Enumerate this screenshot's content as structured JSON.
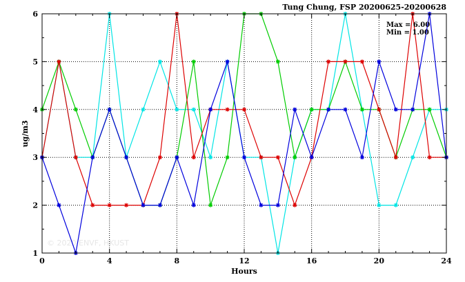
{
  "chart_data": {
    "type": "line",
    "title": "Tung Chung, FSP 20200625-20200628",
    "xlabel": "Hours",
    "ylabel": "ug/m3",
    "xlim": [
      0,
      24
    ],
    "ylim": [
      1,
      6
    ],
    "x_ticks": [
      0,
      4,
      8,
      12,
      16,
      20,
      24
    ],
    "y_ticks": [
      1,
      2,
      3,
      4,
      5,
      6
    ],
    "grid": true,
    "annotations": [
      "Max = 6.00",
      "Min = 1.00"
    ],
    "watermark": "© 2020 ENVF, HKUST",
    "x": [
      0,
      1,
      2,
      3,
      4,
      5,
      6,
      7,
      8,
      9,
      10,
      11,
      12,
      13,
      14,
      15,
      16,
      17,
      18,
      19,
      20,
      21,
      22,
      23,
      24
    ],
    "series": [
      {
        "color": "#00e5e5",
        "values": [
          3,
          5,
          3,
          3,
          6,
          3,
          4,
          5,
          4,
          4,
          3,
          5,
          3,
          3,
          1,
          3,
          4,
          4,
          6,
          4,
          2,
          2,
          3,
          4,
          4
        ]
      },
      {
        "color": "#00cc00",
        "values": [
          4,
          5,
          4,
          3,
          4,
          3,
          2,
          2,
          3,
          5,
          2,
          3,
          6,
          6,
          5,
          3,
          4,
          4,
          5,
          4,
          4,
          3,
          4,
          4,
          3
        ]
      },
      {
        "color": "#dd0000",
        "values": [
          3,
          5,
          3,
          2,
          2,
          2,
          2,
          3,
          6,
          3,
          4,
          4,
          4,
          3,
          3,
          2,
          3,
          5,
          5,
          5,
          4,
          3,
          6,
          3,
          3
        ]
      },
      {
        "color": "#0000dd",
        "values": [
          3,
          2,
          1,
          3,
          4,
          3,
          2,
          2,
          3,
          2,
          4,
          5,
          3,
          2,
          2,
          4,
          3,
          4,
          4,
          3,
          5,
          4,
          4,
          6,
          3
        ]
      }
    ]
  }
}
